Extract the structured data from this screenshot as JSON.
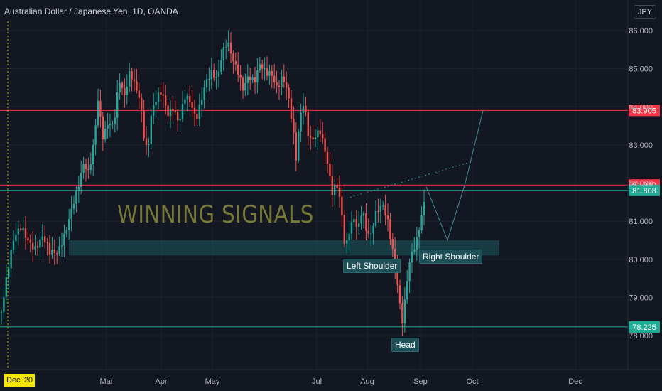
{
  "window": {
    "title": "Australian Dollar / Japanese Yen, 1D, OANDA",
    "currency": "JPY"
  },
  "watermark": "WINNING SIGNALS",
  "annotations": {
    "left_shoulder": "Left Shoulder",
    "head": "Head",
    "right_shoulder": "Right Shoulder"
  },
  "date_badge": "Dec '20",
  "colors": {
    "background": "#131722",
    "up": "#26a69a",
    "down": "#ef5350",
    "red_line": "#f23645",
    "cyan_line": "#22ab94",
    "zone": "#1e5a5e"
  },
  "chart_data": {
    "type": "candlestick",
    "title": "Australian Dollar / Japanese Yen, 1D, OANDA",
    "ylim": [
      77.8,
      86.5
    ],
    "y_ticks": [
      "86.000",
      "85.000",
      "84.000",
      "83.000",
      "82.000",
      "81.000",
      "80.000",
      "79.000",
      "78.000"
    ],
    "x_ticks": [
      "Mar",
      "Apr",
      "May",
      "Jul",
      "Aug",
      "Sep",
      "Oct",
      "Dec"
    ],
    "price_levels": [
      {
        "value": 83.905,
        "label": "83.905",
        "color": "#f23645"
      },
      {
        "value": 81.949,
        "label": "81.949",
        "color": "#f23645"
      },
      {
        "value": 81.808,
        "label": "81.808",
        "color": "#22ab94"
      },
      {
        "value": 78.225,
        "label": "78.225",
        "color": "#22ab94"
      }
    ],
    "zone": {
      "from": 80.1,
      "to": 80.5
    },
    "price_path": [
      [
        0,
        78.4
      ],
      [
        10,
        79.5
      ],
      [
        20,
        80.5
      ],
      [
        30,
        80.9
      ],
      [
        40,
        80.6
      ],
      [
        50,
        80.3
      ],
      [
        60,
        80.5
      ],
      [
        70,
        80.1
      ],
      [
        80,
        80.2
      ],
      [
        90,
        80.7
      ],
      [
        100,
        81.3
      ],
      [
        110,
        81.8
      ],
      [
        118,
        82.4
      ],
      [
        125,
        82.2
      ],
      [
        132,
        83.1
      ],
      [
        138,
        84.3
      ],
      [
        145,
        83.3
      ],
      [
        152,
        83.6
      ],
      [
        160,
        83.4
      ],
      [
        168,
        84.6
      ],
      [
        175,
        84.2
      ],
      [
        183,
        85.0
      ],
      [
        190,
        84.7
      ],
      [
        197,
        84.3
      ],
      [
        203,
        83.2
      ],
      [
        208,
        82.7
      ],
      [
        213,
        83.7
      ],
      [
        220,
        84.1
      ],
      [
        228,
        84.4
      ],
      [
        236,
        83.9
      ],
      [
        244,
        84.1
      ],
      [
        252,
        83.6
      ],
      [
        260,
        84.2
      ],
      [
        268,
        84.0
      ],
      [
        276,
        83.6
      ],
      [
        283,
        84.2
      ],
      [
        290,
        84.8
      ],
      [
        298,
        85.0
      ],
      [
        306,
        84.7
      ],
      [
        313,
        85.3
      ],
      [
        320,
        85.6
      ],
      [
        328,
        85.2
      ],
      [
        335,
        85.0
      ],
      [
        342,
        84.6
      ],
      [
        350,
        84.9
      ],
      [
        358,
        84.6
      ],
      [
        366,
        85.0
      ],
      [
        374,
        84.8
      ],
      [
        382,
        84.9
      ],
      [
        390,
        84.6
      ],
      [
        398,
        84.9
      ],
      [
        405,
        84.4
      ],
      [
        412,
        83.4
      ],
      [
        417,
        82.5
      ],
      [
        422,
        83.6
      ],
      [
        428,
        84.1
      ],
      [
        435,
        83.2
      ],
      [
        442,
        83.3
      ],
      [
        450,
        83.5
      ],
      [
        457,
        82.9
      ],
      [
        463,
        82.2
      ],
      [
        468,
        81.6
      ],
      [
        474,
        81.9
      ],
      [
        480,
        81.4
      ],
      [
        486,
        80.3
      ],
      [
        492,
        80.9
      ],
      [
        498,
        81.2
      ],
      [
        504,
        80.8
      ],
      [
        510,
        81.3
      ],
      [
        516,
        80.6
      ],
      [
        522,
        80.5
      ],
      [
        528,
        81.1
      ],
      [
        534,
        81.4
      ],
      [
        540,
        81.5
      ],
      [
        546,
        81.1
      ],
      [
        552,
        80.4
      ],
      [
        558,
        79.6
      ],
      [
        563,
        78.7
      ],
      [
        567,
        78.2
      ],
      [
        571,
        79.0
      ],
      [
        576,
        79.8
      ],
      [
        581,
        80.2
      ],
      [
        586,
        80.5
      ],
      [
        591,
        81.0
      ],
      [
        596,
        81.5
      ],
      [
        600,
        81.9
      ]
    ],
    "projection": [
      [
        600,
        81.9
      ],
      [
        630,
        80.5
      ],
      [
        655,
        82.0
      ],
      [
        680,
        83.9
      ]
    ]
  }
}
